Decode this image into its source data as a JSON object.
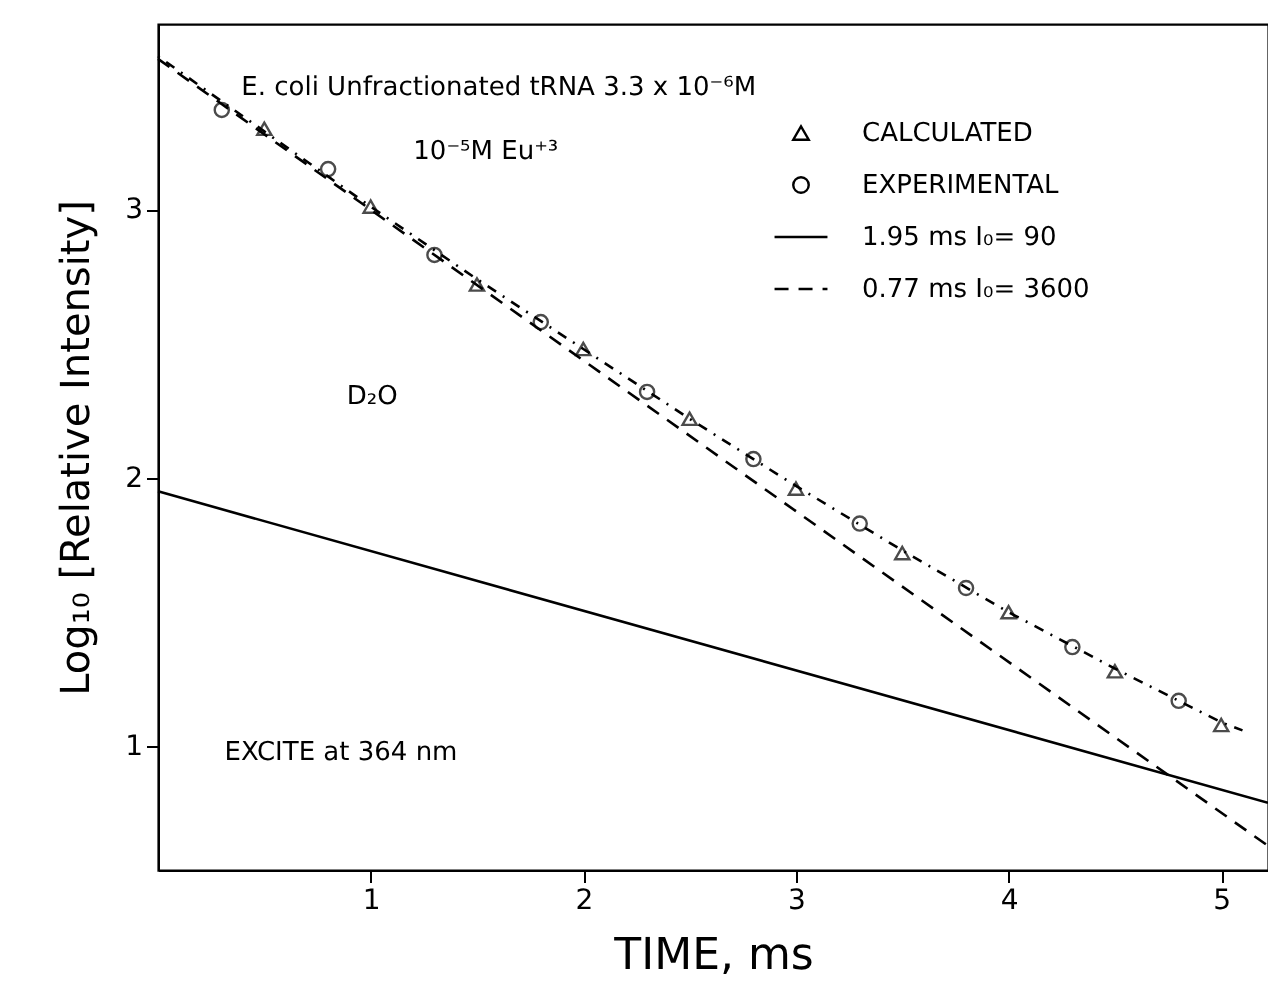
{
  "chart_data": {
    "type": "scatter",
    "xlabel": "TIME, ms",
    "ylabel": "Log₁₀ [Relative   Intensity]",
    "annotations": [
      "E. coli Unfractionated   tRNA   3.3 x 10⁻⁶M",
      "10⁻⁵M  Eu⁺³",
      "D₂O",
      "EXCITE at 364 nm"
    ],
    "xlim": [
      0,
      5.22
    ],
    "xticks": [
      1,
      2,
      3,
      4,
      5
    ],
    "ylim": [
      0.54,
      3.69
    ],
    "yticks": [
      1,
      2,
      3
    ],
    "grid": false,
    "legend": "top right",
    "series": [
      {
        "name": "CALCULATED",
        "marker": "triangle",
        "color": "#000000",
        "x": [
          0.5,
          1.0,
          1.5,
          2.0,
          2.5,
          3.0,
          3.5,
          4.0,
          4.5,
          5.0
        ],
        "values": [
          3.3,
          3.01,
          2.72,
          2.48,
          2.22,
          1.96,
          1.72,
          1.5,
          1.28,
          1.08
        ]
      },
      {
        "name": "EXPERIMENTAL",
        "marker": "circle",
        "color": "#000000",
        "x": [
          0.3,
          0.8,
          1.3,
          1.8,
          2.3,
          2.8,
          3.3,
          3.8,
          4.3,
          4.8
        ],
        "values": [
          3.37,
          3.15,
          2.83,
          2.58,
          2.32,
          2.07,
          1.83,
          1.59,
          1.37,
          1.17
        ]
      },
      {
        "name": "1.95 ms  I₀= 90",
        "type": "line",
        "line_style": "solid",
        "color": "#000000",
        "x": [
          0,
          5.22
        ],
        "values": [
          1.95,
          0.79
        ]
      },
      {
        "name": "0.77 ms  I₀= 3600",
        "type": "line",
        "line_style": "dashed",
        "color": "#000000",
        "x": [
          0,
          5.22
        ],
        "values": [
          3.56,
          0.63
        ]
      },
      {
        "type": "line",
        "line_style": "dotted",
        "color": "#000000",
        "x": [
          0,
          0.5,
          1.0,
          1.5,
          2.0,
          2.5,
          3.0,
          3.5,
          4.0,
          4.5,
          5.0,
          5.1
        ],
        "values": [
          3.57,
          3.29,
          3.01,
          2.74,
          2.48,
          2.22,
          1.97,
          1.73,
          1.5,
          1.29,
          1.09,
          1.06
        ]
      }
    ]
  }
}
